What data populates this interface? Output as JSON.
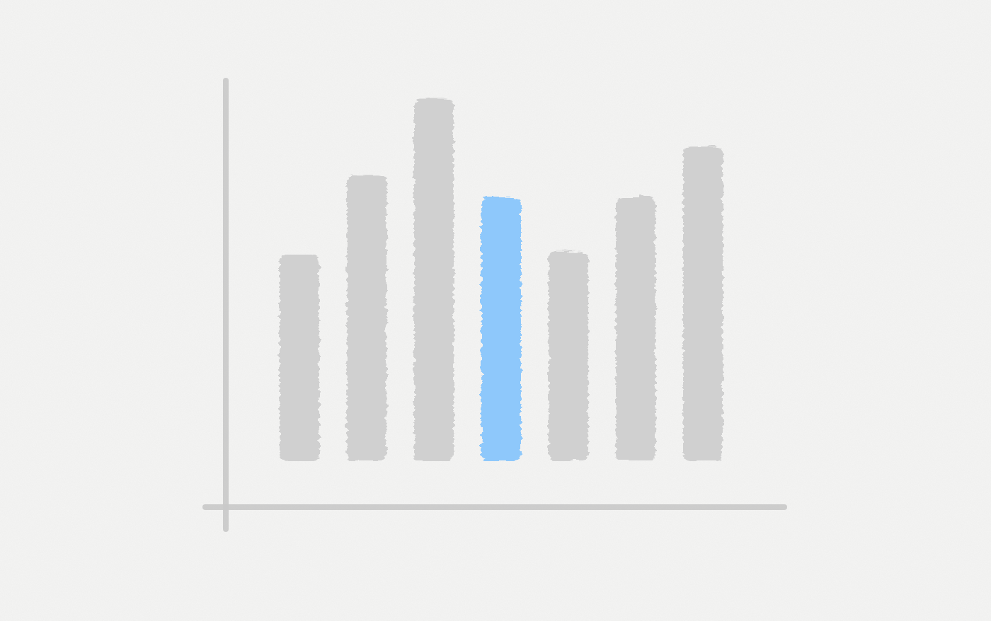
{
  "chart_data": {
    "type": "bar",
    "categories": [
      null,
      null,
      null,
      null,
      null,
      null,
      null
    ],
    "values": [
      57,
      79,
      100,
      73,
      58,
      73,
      87
    ],
    "colors": [
      "#d0d0d0",
      "#d0d0d0",
      "#d0d0d0",
      "#8ec8fb",
      "#d0d0d0",
      "#d0d0d0",
      "#d0d0d0"
    ],
    "ylim": [
      0,
      105
    ],
    "grid": false,
    "tick_labels": false
  }
}
